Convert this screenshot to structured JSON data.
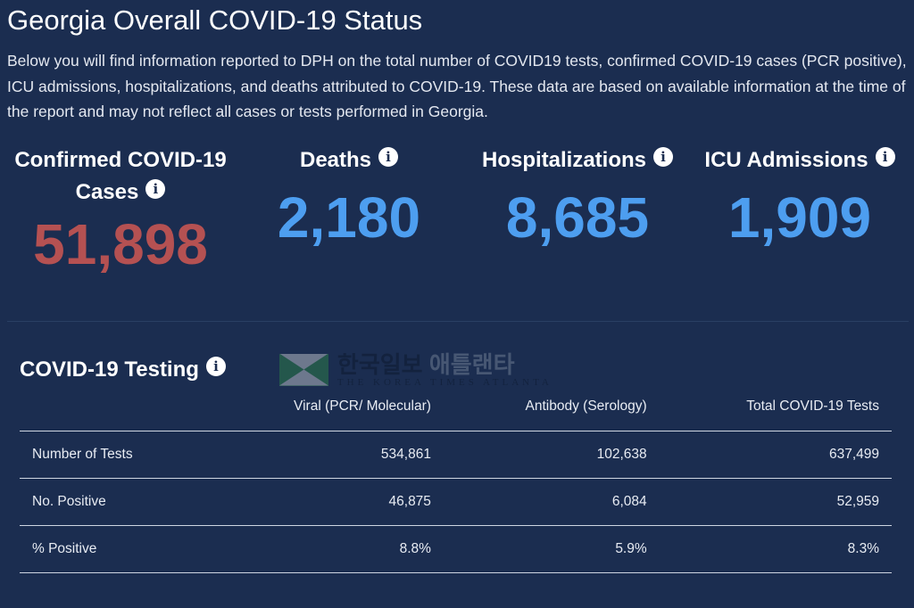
{
  "title": "Georgia Overall COVID-19 Status",
  "intro": "Below you will find information reported to DPH on the total number of COVID19 tests, confirmed COVID-19 cases (PCR positive), ICU admissions, hospitalizations, and deaths attributed to COVID-19. These data are based on available information at the time of the report and may not reflect all cases or tests performed in Georgia.",
  "stats": [
    {
      "label": "Confirmed COVID-19 Cases",
      "value": "51,898",
      "color": "#b55152"
    },
    {
      "label": "Deaths",
      "value": "2,180",
      "color": "#4d9ef0"
    },
    {
      "label": "Hospitalizations",
      "value": "8,685",
      "color": "#4d9ef0"
    },
    {
      "label": "ICU Admissions",
      "value": "1,909",
      "color": "#4d9ef0"
    }
  ],
  "info_icon": "i",
  "testing": {
    "title": "COVID-19 Testing",
    "columns": [
      "",
      "Viral (PCR/ Molecular)",
      "Antibody (Serology)",
      "Total COVID-19 Tests"
    ],
    "rows": [
      [
        "Number of Tests",
        "534,861",
        "102,638",
        "637,499"
      ],
      [
        "No. Positive",
        "46,875",
        "6,084",
        "52,959"
      ],
      [
        "% Positive",
        "8.8%",
        "5.9%",
        "8.3%"
      ]
    ]
  },
  "watermark": {
    "korean_main": "한국일보",
    "korean_sub": "애틀랜타",
    "english": "THE KOREA TIMES ATLANTA"
  }
}
